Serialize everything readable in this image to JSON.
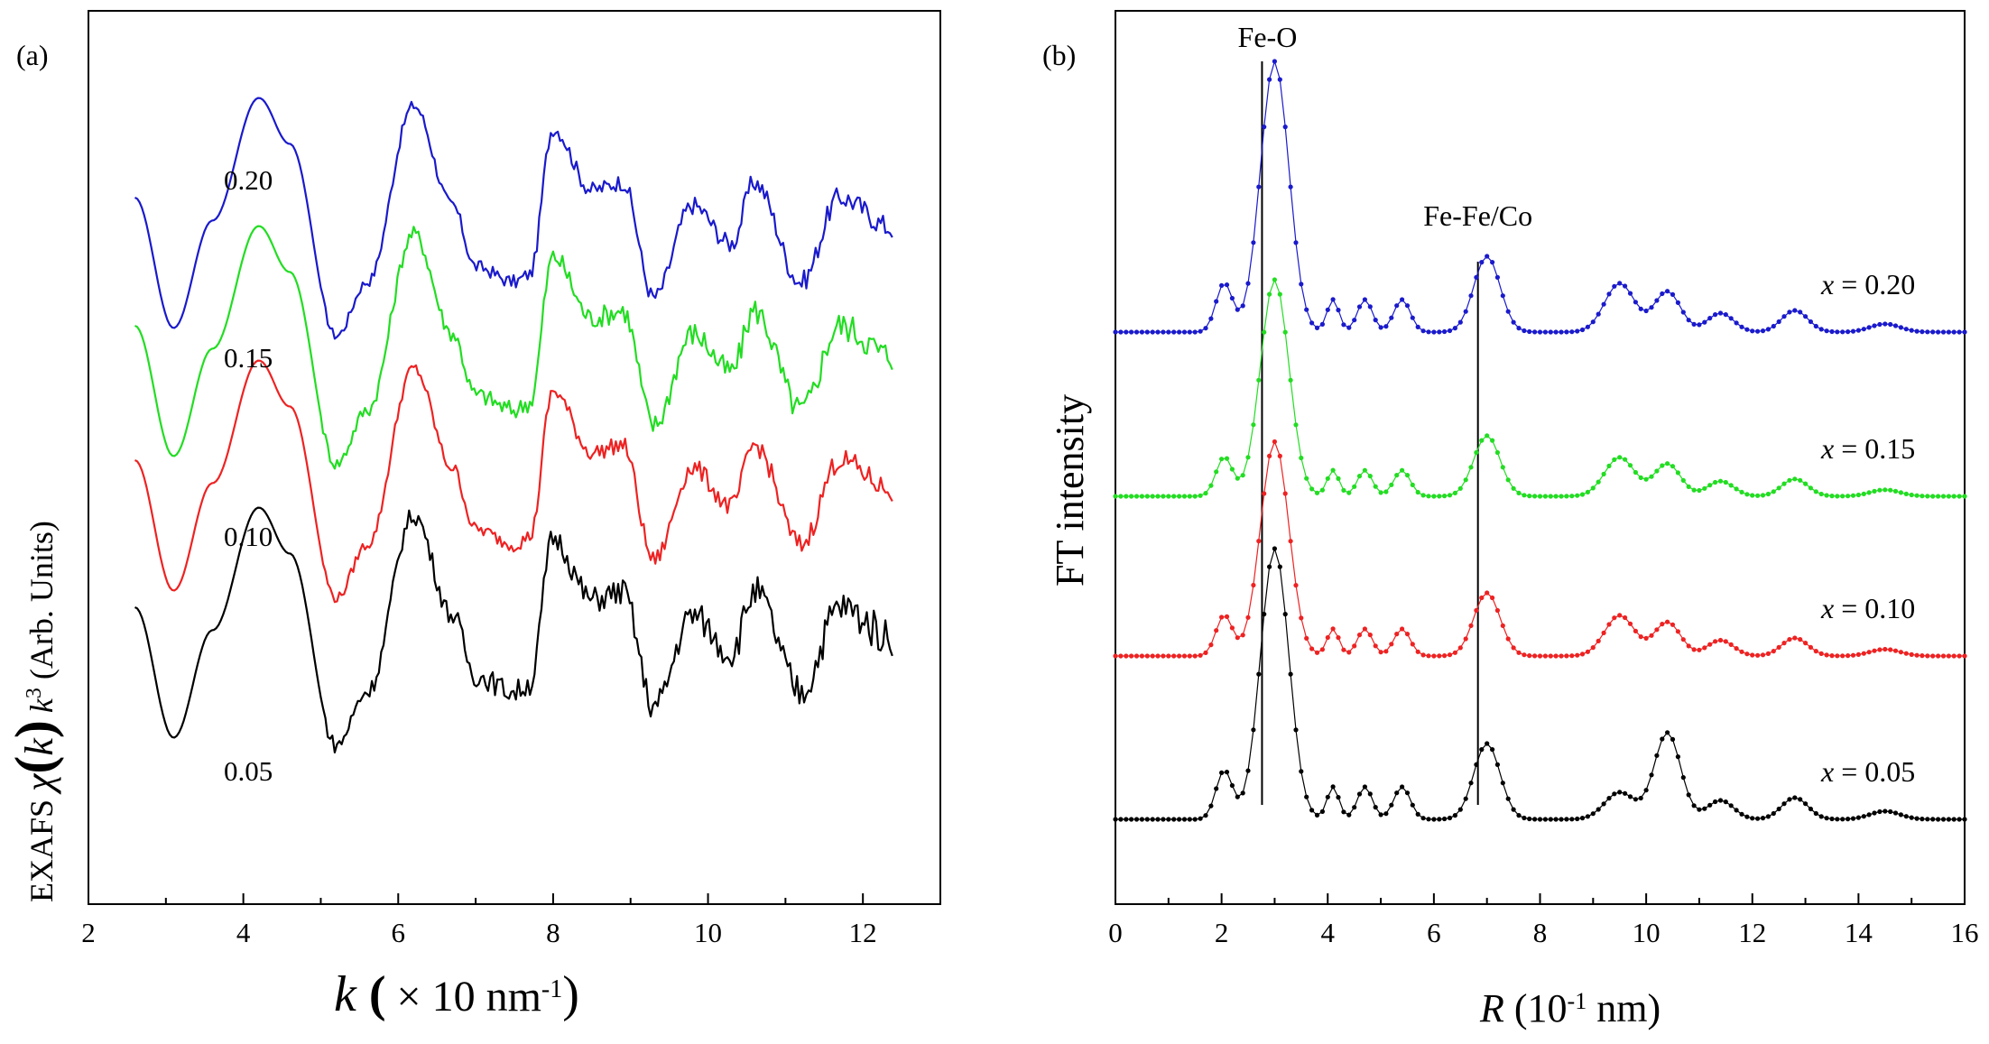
{
  "chart_data": [
    {
      "type": "line",
      "panel": "(a)",
      "xlabel": "k ( × 10 nm-1)",
      "ylabel": "EXAFS χ(k) k3 (Arb. Units)",
      "xlim": [
        2,
        13
      ],
      "xticks": [
        "2",
        "4",
        "6",
        "8",
        "10",
        "12"
      ],
      "ytick_labels": false,
      "series": [
        {
          "name": "0.20",
          "color": "#1a1acc",
          "offset": 3,
          "noise": 0.55
        },
        {
          "name": "0.15",
          "color": "#22dd22",
          "offset": 2,
          "noise": 0.75
        },
        {
          "name": "0.10",
          "color": "#ee2222",
          "offset": 1,
          "noise": 0.55
        },
        {
          "name": "0.05",
          "color": "#000000",
          "offset": 0,
          "noise": 0.9
        }
      ],
      "k_range": [
        2.6,
        12.4
      ],
      "shape_points": [
        [
          2.6,
          0.1
        ],
        [
          3.1,
          -0.75
        ],
        [
          3.6,
          -0.05
        ],
        [
          4.2,
          0.75
        ],
        [
          4.6,
          0.45
        ],
        [
          5.2,
          -0.8
        ],
        [
          5.6,
          -0.45
        ],
        [
          6.2,
          0.7
        ],
        [
          6.7,
          0.05
        ],
        [
          7.0,
          -0.35
        ],
        [
          7.5,
          -0.45
        ],
        [
          7.7,
          -0.4
        ],
        [
          8.0,
          0.55
        ],
        [
          8.5,
          0.15
        ],
        [
          8.9,
          0.2
        ],
        [
          9.3,
          -0.55
        ],
        [
          9.8,
          0.05
        ],
        [
          10.3,
          -0.2
        ],
        [
          10.6,
          0.2
        ],
        [
          11.2,
          -0.45
        ],
        [
          11.7,
          0.1
        ],
        [
          12.4,
          -0.1
        ]
      ]
    },
    {
      "type": "line",
      "panel": "(b)",
      "xlabel": "R (10-1 nm)",
      "ylabel": "FT intensity",
      "xlim": [
        0,
        16
      ],
      "xticks": [
        "0",
        "2",
        "4",
        "6",
        "8",
        "10",
        "12",
        "14",
        "16"
      ],
      "ytick_labels": false,
      "annotations": [
        {
          "text": "Fe-O",
          "x": 3.0
        },
        {
          "text": "Fe-Fe/Co",
          "x": 7.0
        }
      ],
      "series": [
        {
          "name": "x = 0.20",
          "label_x": "x",
          "label_rest": " = 0.20",
          "color": "#1a1acc",
          "offset": 3
        },
        {
          "name": "x = 0.15",
          "label_x": "x",
          "label_rest": " = 0.15",
          "color": "#22dd22",
          "offset": 2
        },
        {
          "name": "x = 0.10",
          "label_x": "x",
          "label_rest": " = 0.10",
          "color": "#ee2222",
          "offset": 1
        },
        {
          "name": "x = 0.05",
          "label_x": "x",
          "label_rest": " = 0.05",
          "color": "#000000",
          "offset": 0
        }
      ],
      "peaks": [
        {
          "r": 2.05,
          "a": 0.18,
          "w": 0.22
        },
        {
          "r": 3.0,
          "a": 1.0,
          "w": 0.38
        },
        {
          "r": 4.1,
          "a": 0.12,
          "w": 0.16
        },
        {
          "r": 4.7,
          "a": 0.12,
          "w": 0.2
        },
        {
          "r": 5.4,
          "a": 0.12,
          "w": 0.22
        },
        {
          "r": 7.0,
          "a": 0.28,
          "w": 0.35
        },
        {
          "r": 9.5,
          "a": 0.18,
          "w": 0.4
        },
        {
          "r": 10.4,
          "a": 0.15,
          "w": 0.35
        },
        {
          "r": 11.4,
          "a": 0.07,
          "w": 0.35
        },
        {
          "r": 12.8,
          "a": 0.08,
          "w": 0.35
        },
        {
          "r": 14.5,
          "a": 0.03,
          "w": 0.4
        }
      ]
    }
  ],
  "panel_a_label": "(a)",
  "panel_b_label": "(b)",
  "axis_a": {
    "ylabel_prefix": "EXAFS ",
    "ylabel_chi": "χ",
    "ylabel_k": "k",
    "ylabel_k3": "k",
    "ylabel_exp": "3",
    "ylabel_suffix": " (Arb. Units)",
    "xlabel_k": "k",
    "xlabel_paren_open": " (",
    "xlabel_mid": " × 10 nm",
    "xlabel_exp": "-1",
    "xlabel_paren_close": ")"
  },
  "axis_b": {
    "ylabel": "FT  intensity",
    "xlabel_r": "R",
    "xlabel_mid": " (10",
    "xlabel_exp": "-1",
    "xlabel_end": " nm)"
  }
}
